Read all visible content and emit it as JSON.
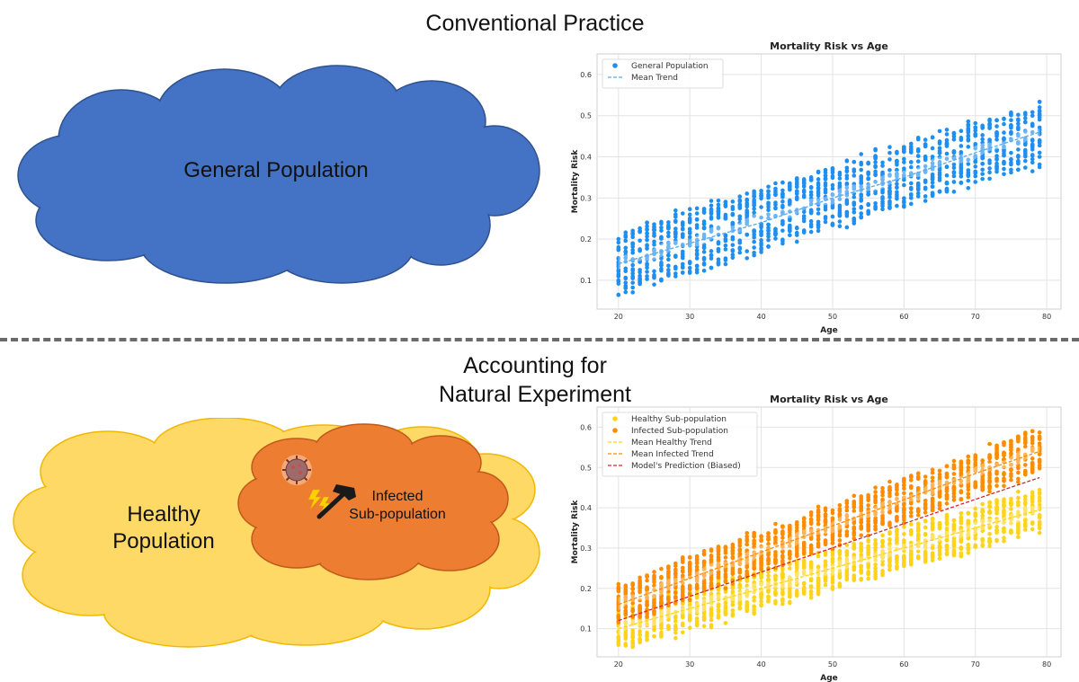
{
  "top": {
    "heading": "Conventional Practice",
    "cloud_label": "General Population",
    "cloud_fill": "#4472c4",
    "cloud_stroke": "#2f528f"
  },
  "bottom": {
    "heading_line1": "Accounting for",
    "heading_line2": "Natural Experiment",
    "outer_cloud_label_line1": "Healthy",
    "outer_cloud_label_line2": "Population",
    "inner_cloud_label_line1": "Infected",
    "inner_cloud_label_line2": "Sub-population",
    "outer_fill": "#ffd966",
    "outer_stroke": "#f0b800",
    "inner_fill": "#ed7d31",
    "inner_stroke": "#c05a1a",
    "icons": [
      "virus-icon",
      "lightning-icon",
      "hammer-icon"
    ]
  },
  "chart_data": [
    {
      "type": "scatter",
      "title": "Mortality Risk vs Age",
      "xlabel": "Age",
      "ylabel": "Mortality Risk",
      "xlim": [
        17,
        82
      ],
      "ylim": [
        0.03,
        0.65
      ],
      "xticks": [
        20,
        30,
        40,
        50,
        60,
        70,
        80
      ],
      "yticks": [
        0.1,
        0.2,
        0.3,
        0.4,
        0.5,
        0.6
      ],
      "grid": true,
      "legend_position": "top-left",
      "series": [
        {
          "name": "General Population",
          "kind": "scatter",
          "color": "#1f8ef1",
          "x_range": [
            20,
            79
          ],
          "intercept": 0.14,
          "slope": 0.0054,
          "spread": 0.075
        },
        {
          "name": "Mean Trend",
          "kind": "line",
          "style": "dashed",
          "color": "#5aa9e6",
          "x": [
            20,
            30,
            40,
            50,
            60,
            70,
            79
          ],
          "y": [
            0.14,
            0.19,
            0.24,
            0.3,
            0.35,
            0.41,
            0.46
          ]
        }
      ]
    },
    {
      "type": "scatter",
      "title": "Mortality Risk vs Age",
      "xlabel": "Age",
      "ylabel": "Mortality Risk",
      "xlim": [
        17,
        82
      ],
      "ylim": [
        0.03,
        0.65
      ],
      "xticks": [
        20,
        30,
        40,
        50,
        60,
        70,
        80
      ],
      "yticks": [
        0.1,
        0.2,
        0.3,
        0.4,
        0.5,
        0.6
      ],
      "grid": true,
      "legend_position": "top-left",
      "series": [
        {
          "name": "Healthy Sub-population",
          "kind": "scatter",
          "color": "#ffd31a",
          "x_range": [
            20,
            79
          ],
          "intercept": 0.1,
          "slope": 0.005,
          "spread": 0.05
        },
        {
          "name": "Infected Sub-population",
          "kind": "scatter",
          "color": "#ff8c00",
          "x_range": [
            20,
            79
          ],
          "intercept": 0.16,
          "slope": 0.0065,
          "spread": 0.05
        },
        {
          "name": "Mean Healthy Trend",
          "kind": "line",
          "style": "dashed",
          "color": "#ffd31a",
          "x": [
            20,
            30,
            40,
            50,
            60,
            70,
            79
          ],
          "y": [
            0.1,
            0.15,
            0.2,
            0.25,
            0.3,
            0.35,
            0.395
          ]
        },
        {
          "name": "Mean Infected Trend",
          "kind": "line",
          "style": "dashed",
          "color": "#ff8c00",
          "x": [
            20,
            30,
            40,
            50,
            60,
            70,
            79
          ],
          "y": [
            0.16,
            0.225,
            0.29,
            0.355,
            0.42,
            0.485,
            0.54
          ]
        },
        {
          "name": "Model's Prediction (Biased)",
          "kind": "line",
          "style": "dashed",
          "color": "#d62728",
          "x": [
            20,
            79
          ],
          "y": [
            0.12,
            0.475
          ]
        }
      ]
    }
  ]
}
